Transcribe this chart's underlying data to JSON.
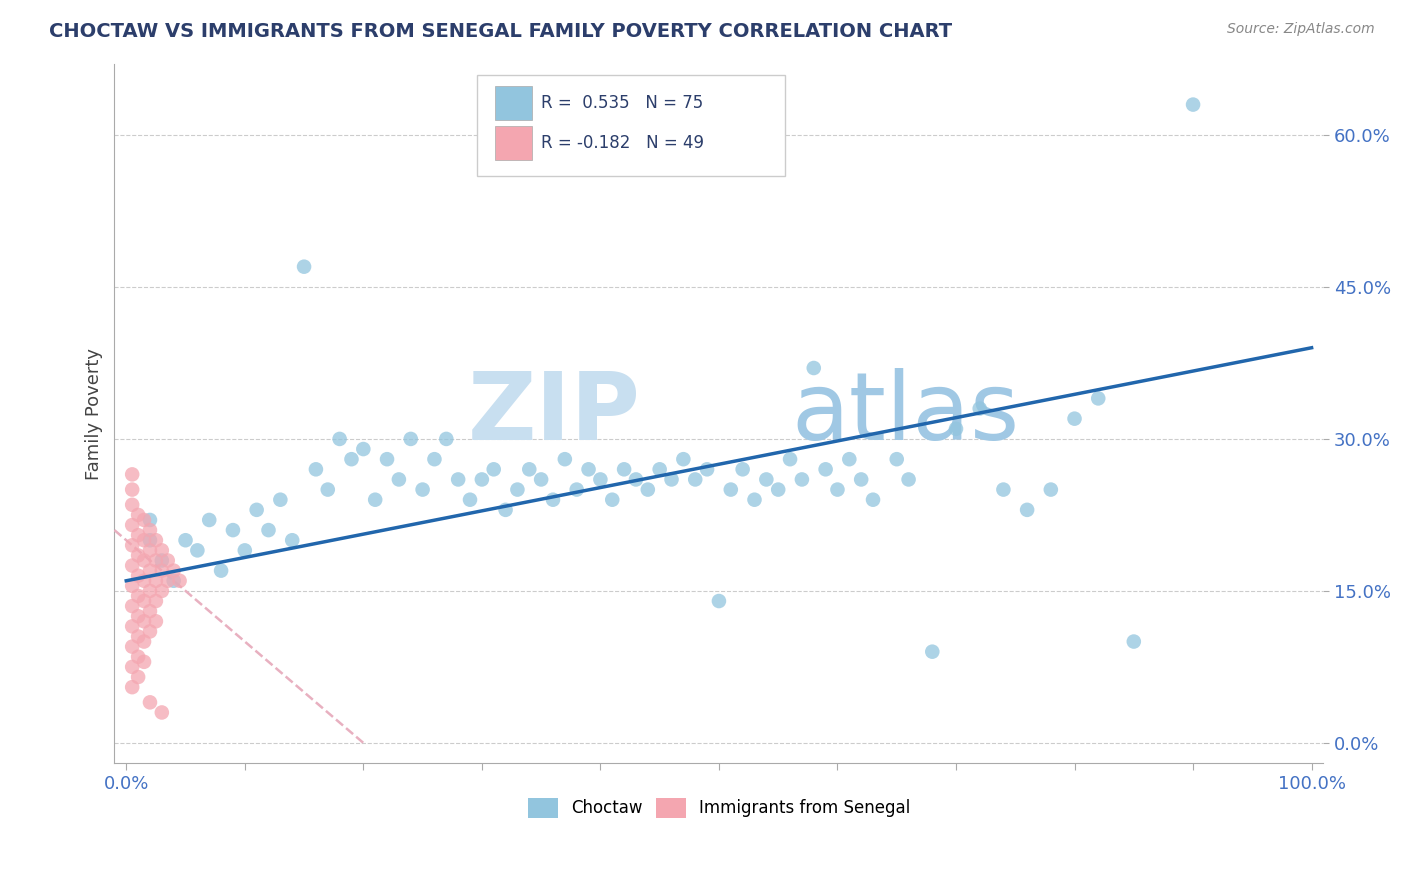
{
  "title": "CHOCTAW VS IMMIGRANTS FROM SENEGAL FAMILY POVERTY CORRELATION CHART",
  "source": "Source: ZipAtlas.com",
  "ylabel": "Family Poverty",
  "choctaw_color": "#92c5de",
  "senegal_color": "#f4a6b0",
  "choctaw_line_color": "#2166ac",
  "senegal_line_color": "#d4a0b0",
  "r_choctaw": 0.535,
  "n_choctaw": 75,
  "r_senegal": -0.182,
  "n_senegal": 49,
  "xlim": [
    -0.01,
    1.01
  ],
  "ylim": [
    -0.02,
    0.67
  ],
  "ytick_positions": [
    0.0,
    0.15,
    0.3,
    0.45,
    0.6
  ],
  "background_color": "#ffffff",
  "choctaw_points": [
    [
      0.02,
      0.2
    ],
    [
      0.03,
      0.18
    ],
    [
      0.04,
      0.16
    ],
    [
      0.05,
      0.2
    ],
    [
      0.06,
      0.19
    ],
    [
      0.07,
      0.22
    ],
    [
      0.08,
      0.17
    ],
    [
      0.09,
      0.21
    ],
    [
      0.1,
      0.19
    ],
    [
      0.11,
      0.23
    ],
    [
      0.12,
      0.21
    ],
    [
      0.13,
      0.24
    ],
    [
      0.14,
      0.2
    ],
    [
      0.15,
      0.47
    ],
    [
      0.16,
      0.27
    ],
    [
      0.17,
      0.25
    ],
    [
      0.18,
      0.3
    ],
    [
      0.19,
      0.28
    ],
    [
      0.2,
      0.29
    ],
    [
      0.21,
      0.24
    ],
    [
      0.22,
      0.28
    ],
    [
      0.23,
      0.26
    ],
    [
      0.24,
      0.3
    ],
    [
      0.25,
      0.25
    ],
    [
      0.26,
      0.28
    ],
    [
      0.27,
      0.3
    ],
    [
      0.28,
      0.26
    ],
    [
      0.29,
      0.24
    ],
    [
      0.3,
      0.26
    ],
    [
      0.31,
      0.27
    ],
    [
      0.32,
      0.23
    ],
    [
      0.33,
      0.25
    ],
    [
      0.34,
      0.27
    ],
    [
      0.35,
      0.26
    ],
    [
      0.36,
      0.24
    ],
    [
      0.37,
      0.28
    ],
    [
      0.38,
      0.25
    ],
    [
      0.39,
      0.27
    ],
    [
      0.4,
      0.26
    ],
    [
      0.41,
      0.24
    ],
    [
      0.42,
      0.27
    ],
    [
      0.43,
      0.26
    ],
    [
      0.44,
      0.25
    ],
    [
      0.45,
      0.27
    ],
    [
      0.46,
      0.26
    ],
    [
      0.47,
      0.28
    ],
    [
      0.48,
      0.26
    ],
    [
      0.49,
      0.27
    ],
    [
      0.5,
      0.14
    ],
    [
      0.51,
      0.25
    ],
    [
      0.52,
      0.27
    ],
    [
      0.53,
      0.24
    ],
    [
      0.54,
      0.26
    ],
    [
      0.55,
      0.25
    ],
    [
      0.56,
      0.28
    ],
    [
      0.57,
      0.26
    ],
    [
      0.58,
      0.37
    ],
    [
      0.59,
      0.27
    ],
    [
      0.6,
      0.25
    ],
    [
      0.61,
      0.28
    ],
    [
      0.62,
      0.26
    ],
    [
      0.63,
      0.24
    ],
    [
      0.65,
      0.28
    ],
    [
      0.66,
      0.26
    ],
    [
      0.68,
      0.09
    ],
    [
      0.7,
      0.31
    ],
    [
      0.72,
      0.33
    ],
    [
      0.74,
      0.25
    ],
    [
      0.76,
      0.23
    ],
    [
      0.78,
      0.25
    ],
    [
      0.8,
      0.32
    ],
    [
      0.82,
      0.34
    ],
    [
      0.85,
      0.1
    ],
    [
      0.9,
      0.63
    ],
    [
      0.02,
      0.22
    ]
  ],
  "senegal_points": [
    [
      0.005,
      0.235
    ],
    [
      0.005,
      0.215
    ],
    [
      0.005,
      0.195
    ],
    [
      0.005,
      0.175
    ],
    [
      0.005,
      0.155
    ],
    [
      0.005,
      0.135
    ],
    [
      0.005,
      0.115
    ],
    [
      0.005,
      0.095
    ],
    [
      0.005,
      0.075
    ],
    [
      0.005,
      0.055
    ],
    [
      0.005,
      0.25
    ],
    [
      0.005,
      0.265
    ],
    [
      0.01,
      0.225
    ],
    [
      0.01,
      0.205
    ],
    [
      0.01,
      0.185
    ],
    [
      0.01,
      0.165
    ],
    [
      0.01,
      0.145
    ],
    [
      0.01,
      0.125
    ],
    [
      0.01,
      0.105
    ],
    [
      0.01,
      0.085
    ],
    [
      0.01,
      0.065
    ],
    [
      0.015,
      0.22
    ],
    [
      0.015,
      0.2
    ],
    [
      0.015,
      0.18
    ],
    [
      0.015,
      0.16
    ],
    [
      0.015,
      0.14
    ],
    [
      0.015,
      0.12
    ],
    [
      0.015,
      0.1
    ],
    [
      0.015,
      0.08
    ],
    [
      0.02,
      0.21
    ],
    [
      0.02,
      0.19
    ],
    [
      0.02,
      0.17
    ],
    [
      0.02,
      0.15
    ],
    [
      0.02,
      0.13
    ],
    [
      0.02,
      0.11
    ],
    [
      0.025,
      0.2
    ],
    [
      0.025,
      0.18
    ],
    [
      0.025,
      0.16
    ],
    [
      0.025,
      0.14
    ],
    [
      0.025,
      0.12
    ],
    [
      0.03,
      0.19
    ],
    [
      0.03,
      0.17
    ],
    [
      0.03,
      0.15
    ],
    [
      0.035,
      0.18
    ],
    [
      0.035,
      0.16
    ],
    [
      0.04,
      0.17
    ],
    [
      0.045,
      0.16
    ],
    [
      0.02,
      0.04
    ],
    [
      0.03,
      0.03
    ]
  ],
  "choctaw_line_x": [
    0.0,
    1.0
  ],
  "choctaw_line_y": [
    0.16,
    0.39
  ],
  "senegal_line_x": [
    -0.01,
    0.2
  ],
  "senegal_line_y": [
    0.21,
    0.0
  ]
}
